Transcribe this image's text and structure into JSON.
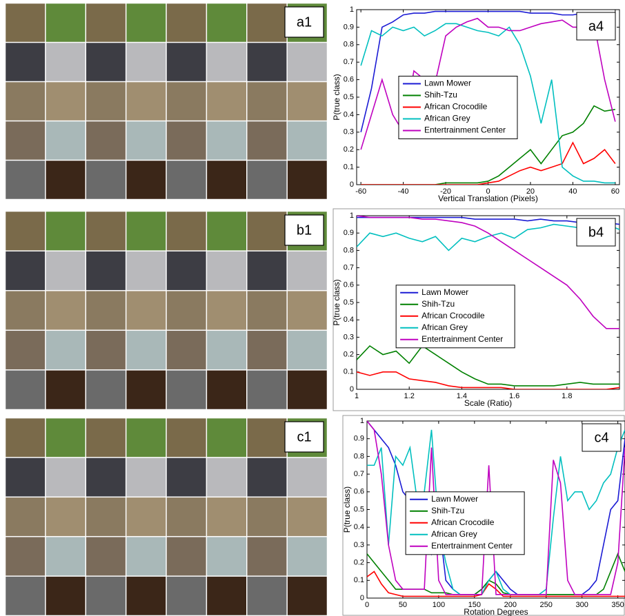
{
  "panels": [
    {
      "label": "a1"
    },
    {
      "label": "b1"
    },
    {
      "label": "c1"
    }
  ],
  "chart_data": [
    {
      "type": "line",
      "annotation": "a4",
      "xlabel": "Vertical Translation (Pixels)",
      "ylabel": "P(true class)",
      "xlim": [
        -62,
        62
      ],
      "ylim": [
        0,
        1
      ],
      "xticks": [
        -60,
        -40,
        -20,
        0,
        20,
        40,
        60
      ],
      "yticks": [
        0,
        0.1,
        0.2,
        0.3,
        0.4,
        0.5,
        0.6,
        0.7,
        0.8,
        0.9,
        1
      ],
      "legend_position": "center",
      "x": [
        -60,
        -55,
        -50,
        -45,
        -40,
        -35,
        -30,
        -25,
        -20,
        -15,
        -10,
        -5,
        0,
        5,
        10,
        15,
        20,
        25,
        30,
        35,
        40,
        45,
        50,
        55,
        60
      ],
      "series": [
        {
          "name": "Lawn Mower",
          "color": "#1a1ad4",
          "values": [
            0.3,
            0.55,
            0.9,
            0.93,
            0.97,
            0.98,
            0.98,
            0.99,
            0.99,
            0.99,
            0.99,
            0.99,
            0.99,
            0.99,
            0.99,
            0.99,
            0.98,
            0.98,
            0.98,
            0.97,
            0.97,
            0.98,
            0.97,
            0.98,
            0.97
          ]
        },
        {
          "name": "Shih-Tzu",
          "color": "#008000",
          "values": [
            0,
            0,
            0,
            0,
            0,
            0,
            0,
            0,
            0.01,
            0.01,
            0.01,
            0.01,
            0.02,
            0.05,
            0.1,
            0.15,
            0.2,
            0.12,
            0.2,
            0.28,
            0.3,
            0.35,
            0.45,
            0.42,
            0.43
          ]
        },
        {
          "name": "African Crocodile",
          "color": "#ff0000",
          "values": [
            0,
            0,
            0,
            0,
            0,
            0,
            0,
            0,
            0,
            0,
            0,
            0,
            0.01,
            0.02,
            0.05,
            0.08,
            0.1,
            0.08,
            0.1,
            0.12,
            0.24,
            0.12,
            0.15,
            0.2,
            0.12
          ]
        },
        {
          "name": "African Grey",
          "color": "#00bfbf",
          "values": [
            0.68,
            0.88,
            0.85,
            0.9,
            0.88,
            0.9,
            0.85,
            0.88,
            0.92,
            0.92,
            0.9,
            0.88,
            0.87,
            0.85,
            0.9,
            0.8,
            0.62,
            0.35,
            0.6,
            0.1,
            0.05,
            0.02,
            0.02,
            0.01,
            0.01
          ]
        },
        {
          "name": "Entertrainment Center",
          "color": "#bf00bf",
          "values": [
            0.2,
            0.4,
            0.6,
            0.4,
            0.3,
            0.65,
            0.6,
            0.58,
            0.85,
            0.9,
            0.93,
            0.95,
            0.9,
            0.9,
            0.88,
            0.88,
            0.9,
            0.92,
            0.93,
            0.94,
            0.9,
            0.9,
            0.92,
            0.6,
            0.36
          ]
        }
      ]
    },
    {
      "type": "line",
      "annotation": "b4",
      "xlabel": "Scale (Ratio)",
      "ylabel": "P(true class)",
      "xlim": [
        1,
        2
      ],
      "ylim": [
        0,
        1
      ],
      "xticks": [
        1,
        1.2,
        1.4,
        1.6,
        1.8
      ],
      "yticks": [
        0,
        0.1,
        0.2,
        0.3,
        0.4,
        0.5,
        0.6,
        0.7,
        0.8,
        0.9,
        1
      ],
      "legend_position": "left",
      "x": [
        1,
        1.05,
        1.1,
        1.15,
        1.2,
        1.25,
        1.3,
        1.35,
        1.4,
        1.45,
        1.5,
        1.55,
        1.6,
        1.65,
        1.7,
        1.75,
        1.8,
        1.85,
        1.9,
        1.95,
        2
      ],
      "series": [
        {
          "name": "Lawn Mower",
          "color": "#1a1ad4",
          "values": [
            0.99,
            0.99,
            0.99,
            0.99,
            0.99,
            0.99,
            0.99,
            0.99,
            0.99,
            0.98,
            0.98,
            0.98,
            0.98,
            0.97,
            0.98,
            0.97,
            0.97,
            0.96,
            0.97,
            0.96,
            0.95
          ]
        },
        {
          "name": "Shih-Tzu",
          "color": "#008000",
          "values": [
            0.17,
            0.25,
            0.2,
            0.22,
            0.15,
            0.25,
            0.2,
            0.15,
            0.1,
            0.06,
            0.03,
            0.03,
            0.02,
            0.02,
            0.02,
            0.02,
            0.03,
            0.04,
            0.03,
            0.03,
            0.03
          ]
        },
        {
          "name": "African Crocodile",
          "color": "#ff0000",
          "values": [
            0.1,
            0.08,
            0.1,
            0.1,
            0.06,
            0.05,
            0.04,
            0.02,
            0.01,
            0.01,
            0.01,
            0.01,
            0,
            0,
            0,
            0,
            0,
            0,
            0,
            0,
            0.01
          ]
        },
        {
          "name": "African Grey",
          "color": "#00bfbf",
          "values": [
            0.82,
            0.9,
            0.88,
            0.9,
            0.87,
            0.85,
            0.88,
            0.8,
            0.87,
            0.85,
            0.88,
            0.9,
            0.87,
            0.92,
            0.93,
            0.95,
            0.94,
            0.93,
            0.96,
            0.95,
            0.92
          ]
        },
        {
          "name": "Entertrainment Center",
          "color": "#bf00bf",
          "values": [
            1,
            0.99,
            0.99,
            0.99,
            0.99,
            0.98,
            0.98,
            0.97,
            0.96,
            0.94,
            0.9,
            0.85,
            0.8,
            0.75,
            0.7,
            0.65,
            0.6,
            0.52,
            0.42,
            0.35,
            0.35
          ]
        }
      ]
    },
    {
      "type": "line",
      "annotation": "c4",
      "xlabel": "Rotation Degrees",
      "ylabel": "P(true class)",
      "xlim": [
        0,
        360
      ],
      "ylim": [
        0,
        1
      ],
      "xticks": [
        0,
        50,
        100,
        150,
        200,
        250,
        300,
        350
      ],
      "yticks": [
        0,
        0.1,
        0.2,
        0.3,
        0.4,
        0.5,
        0.6,
        0.7,
        0.8,
        0.9,
        1
      ],
      "legend_position": "left",
      "x": [
        0,
        10,
        20,
        30,
        40,
        50,
        60,
        70,
        80,
        90,
        100,
        110,
        120,
        130,
        140,
        150,
        160,
        170,
        180,
        190,
        200,
        210,
        220,
        230,
        240,
        250,
        260,
        270,
        280,
        290,
        300,
        310,
        320,
        330,
        340,
        350,
        360
      ],
      "series": [
        {
          "name": "Lawn Mower",
          "color": "#1a1ad4",
          "values": [
            1,
            0.95,
            0.9,
            0.85,
            0.75,
            0.6,
            0.55,
            0.4,
            0.35,
            0.25,
            0.45,
            0.1,
            0.05,
            0.02,
            0.02,
            0.02,
            0.05,
            0.1,
            0.15,
            0.1,
            0.05,
            0.02,
            0.02,
            0.02,
            0.02,
            0.02,
            0.02,
            0.02,
            0.02,
            0.02,
            0.02,
            0.05,
            0.1,
            0.3,
            0.5,
            0.55,
            0.9
          ]
        },
        {
          "name": "Shih-Tzu",
          "color": "#008000",
          "values": [
            0.25,
            0.2,
            0.15,
            0.1,
            0.05,
            0.05,
            0.05,
            0.05,
            0.05,
            0.03,
            0.03,
            0.03,
            0.02,
            0.02,
            0.02,
            0.02,
            0.05,
            0.1,
            0.08,
            0.03,
            0.02,
            0.02,
            0.02,
            0.02,
            0.02,
            0.02,
            0.02,
            0.02,
            0.02,
            0.02,
            0.02,
            0.02,
            0.02,
            0.05,
            0.15,
            0.25,
            0.15
          ]
        },
        {
          "name": "African Crocodile",
          "color": "#ff0000",
          "values": [
            0.12,
            0.15,
            0.08,
            0.03,
            0.02,
            0.01,
            0.01,
            0.01,
            0.01,
            0.01,
            0.01,
            0.01,
            0.01,
            0.01,
            0.01,
            0.01,
            0.02,
            0.08,
            0.05,
            0.01,
            0.01,
            0.01,
            0.01,
            0.01,
            0.01,
            0.01,
            0.01,
            0.01,
            0.01,
            0.01,
            0.01,
            0.01,
            0.01,
            0.01,
            0.01,
            0.01,
            0.01
          ]
        },
        {
          "name": "African Grey",
          "color": "#00bfbf",
          "values": [
            0.75,
            0.75,
            0.85,
            0.3,
            0.8,
            0.75,
            0.85,
            0.55,
            0.6,
            0.95,
            0.4,
            0.2,
            0.05,
            0.02,
            0.02,
            0.02,
            0.02,
            0.1,
            0.15,
            0.05,
            0.02,
            0.02,
            0.02,
            0.02,
            0.02,
            0.05,
            0.45,
            0.8,
            0.55,
            0.6,
            0.6,
            0.5,
            0.55,
            0.65,
            0.7,
            0.85,
            0.95
          ]
        },
        {
          "name": "Entertrainment Center",
          "color": "#bf00bf",
          "values": [
            1,
            0.95,
            0.7,
            0.3,
            0.1,
            0.05,
            0.05,
            0.05,
            0.05,
            0.85,
            0.1,
            0.02,
            0.02,
            0.02,
            0.02,
            0.02,
            0.02,
            0.75,
            0.02,
            0.02,
            0.02,
            0.02,
            0.02,
            0.02,
            0.02,
            0.02,
            0.78,
            0.65,
            0.1,
            0.02,
            0.02,
            0.02,
            0.02,
            0.02,
            0.02,
            0.2,
            0.85
          ]
        }
      ]
    }
  ]
}
